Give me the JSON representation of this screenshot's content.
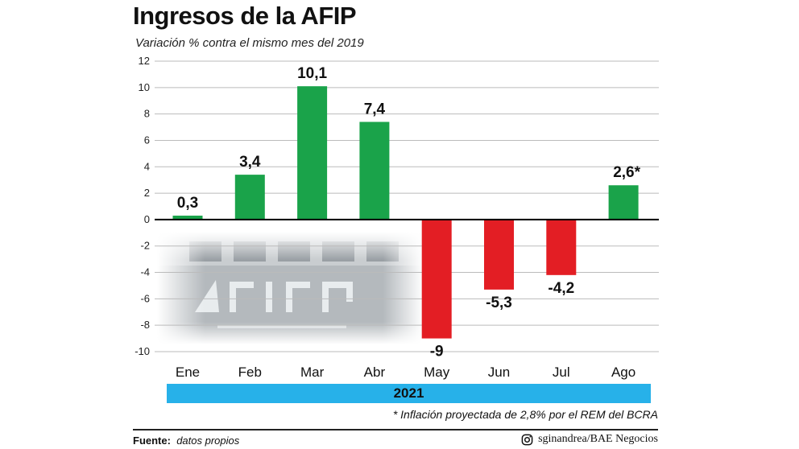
{
  "header": {
    "title": "Ingresos de la AFIP",
    "subtitle": "Variación % contra el mismo mes del 2019"
  },
  "chart_data": {
    "type": "bar",
    "categories": [
      "Ene",
      "Feb",
      "Mar",
      "Abr",
      "May",
      "Jun",
      "Jul",
      "Ago"
    ],
    "values": [
      0.3,
      3.4,
      10.1,
      7.4,
      -9,
      -5.3,
      -4.2,
      2.6
    ],
    "value_labels": [
      "0,3",
      "3,4",
      "10,1",
      "7,4",
      "-9",
      "-5,3",
      "-4,2",
      "2,6*"
    ],
    "y_ticks": [
      "12",
      "10",
      "8",
      "6",
      "4",
      "2",
      "0",
      "-2",
      "-4",
      "-6",
      "-8",
      "-10"
    ],
    "ylim": [
      -10,
      12
    ],
    "grid": true,
    "colors": {
      "positive": "#1aa34a",
      "negative": "#e31e24",
      "grid": "#bbbbbb",
      "zero_line": "#000000"
    }
  },
  "year_band": {
    "label": "2021",
    "color": "#27b1e9"
  },
  "note": "* Inflación proyectada de 2,8% por el REM del BCRA",
  "footer": {
    "source_label": "Fuente:",
    "source_text": "datos propios",
    "credit_icon": "instagram-icon",
    "credit": "sginandrea/BAE Negocios"
  }
}
